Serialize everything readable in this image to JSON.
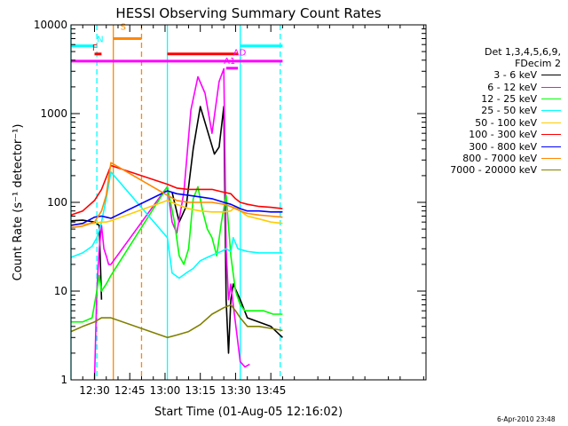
{
  "chart_data": {
    "type": "line",
    "title": "HESSI Observing Summary Count Rates",
    "xlabel": "Start Time (01-Aug-05 12:16:02)",
    "ylabel": "Count Rate (s⁻¹ detector⁻¹)",
    "yscale": "log",
    "ylim": [
      1,
      10000
    ],
    "xlim_minutes": [
      740,
      891
    ],
    "x_ticks": [
      {
        "minutes": 750,
        "label": "12:30"
      },
      {
        "minutes": 765,
        "label": "12:45"
      },
      {
        "minutes": 780,
        "label": "13:00"
      },
      {
        "minutes": 795,
        "label": "13:15"
      },
      {
        "minutes": 810,
        "label": "13:30"
      },
      {
        "minutes": 825,
        "label": "13:45"
      }
    ],
    "y_ticks": [
      {
        "value": 1,
        "label": "1"
      },
      {
        "value": 10,
        "label": "10"
      },
      {
        "value": 100,
        "label": "100"
      },
      {
        "value": 1000,
        "label": "1000"
      },
      {
        "value": 10000,
        "label": "10000"
      }
    ],
    "legend": {
      "header": [
        "Det 1,3,4,5,6,9,",
        "FDecim 2"
      ],
      "placement": "right"
    },
    "grid": false,
    "series": [
      {
        "name": "3 - 6 keV",
        "color": "#000000",
        "x": [
          740,
          745,
          750,
          752,
          753,
          754,
          781,
          783,
          786,
          789,
          792,
          795,
          798,
          801,
          803,
          805,
          806,
          807,
          808,
          809,
          812,
          815,
          825,
          830
        ],
        "y": [
          62,
          63,
          60,
          55,
          8,
          null,
          null,
          130,
          60,
          90,
          400,
          1200,
          650,
          350,
          420,
          1200,
          8,
          2,
          8,
          12,
          8,
          5,
          4,
          3
        ]
      },
      {
        "name": "6 - 12 keV",
        "color": "#ff00ff",
        "x": [
          750,
          751,
          752,
          753,
          754,
          755,
          756,
          757,
          781,
          783,
          785,
          788,
          791,
          794,
          797,
          800,
          803,
          805,
          806,
          807,
          808,
          809,
          812,
          814,
          816
        ],
        "y": [
          1,
          10,
          30,
          55,
          30,
          25,
          20,
          20,
          150,
          60,
          45,
          130,
          1100,
          2600,
          1700,
          600,
          2300,
          3200,
          30,
          8,
          12,
          7,
          1.6,
          1.4,
          1.5
        ]
      },
      {
        "name": "12 - 25 keV",
        "color": "#00ff00",
        "x": [
          740,
          745,
          749,
          751,
          752,
          753,
          755,
          757,
          781,
          784,
          786,
          788,
          790,
          792,
          794,
          796,
          798,
          800,
          802,
          804,
          806,
          808,
          810,
          812,
          814,
          815,
          818,
          822,
          826,
          830
        ],
        "y": [
          4.5,
          4.5,
          5,
          10,
          15,
          10,
          12,
          15,
          150,
          60,
          25,
          20,
          30,
          110,
          150,
          80,
          50,
          40,
          25,
          60,
          120,
          25,
          10,
          7,
          6,
          6,
          6,
          6,
          5.5,
          5.5
        ]
      },
      {
        "name": "25 - 50 keV",
        "color": "#00ffff",
        "x": [
          740,
          745,
          749,
          751,
          753,
          755,
          757,
          781,
          783,
          786,
          789,
          792,
          795,
          798,
          801,
          804,
          806,
          808,
          809,
          811,
          815,
          820,
          825,
          830
        ],
        "y": [
          24,
          27,
          32,
          40,
          60,
          110,
          220,
          40,
          16,
          14,
          16,
          18,
          22,
          24,
          26,
          28,
          30,
          28,
          40,
          30,
          28,
          27,
          27,
          27
        ]
      },
      {
        "name": "50 - 100 keV",
        "color": "#ffcc00",
        "x": [
          740,
          745,
          750,
          753,
          755,
          757,
          781,
          785,
          790,
          795,
          800,
          805,
          808,
          810,
          812,
          815,
          820,
          825,
          830
        ],
        "y": [
          56,
          57,
          58,
          60,
          60,
          62,
          105,
          95,
          85,
          80,
          78,
          78,
          80,
          90,
          80,
          70,
          65,
          60,
          58
        ]
      },
      {
        "name": "100 - 300 keV",
        "color": "#ff0000",
        "x": [
          740,
          745,
          750,
          753,
          755,
          757,
          781,
          785,
          790,
          795,
          800,
          805,
          808,
          810,
          812,
          815,
          820,
          825,
          830
        ],
        "y": [
          72,
          80,
          105,
          140,
          190,
          260,
          160,
          145,
          140,
          140,
          140,
          130,
          125,
          110,
          100,
          95,
          90,
          88,
          85
        ]
      },
      {
        "name": "300 - 800 keV",
        "color": "#0000ff",
        "x": [
          740,
          745,
          750,
          753,
          755,
          757,
          781,
          785,
          790,
          795,
          800,
          805,
          808,
          810,
          812,
          815,
          820,
          825,
          830
        ],
        "y": [
          55,
          58,
          68,
          70,
          68,
          66,
          135,
          125,
          120,
          115,
          110,
          100,
          95,
          90,
          85,
          80,
          80,
          78,
          78
        ]
      },
      {
        "name": "800 - 7000 keV",
        "color": "#ff8800",
        "x": [
          740,
          745,
          750,
          753,
          755,
          757,
          781,
          785,
          790,
          795,
          800,
          805,
          808,
          810,
          812,
          815,
          820,
          825,
          830
        ],
        "y": [
          52,
          54,
          60,
          80,
          120,
          280,
          120,
          105,
          100,
          100,
          100,
          95,
          90,
          85,
          80,
          75,
          72,
          70,
          68
        ]
      },
      {
        "name": "7000 - 20000 keV",
        "color": "#808000",
        "x": [
          740,
          745,
          750,
          753,
          755,
          757,
          781,
          785,
          790,
          795,
          800,
          805,
          808,
          810,
          812,
          815,
          820,
          825,
          830
        ],
        "y": [
          3.5,
          4,
          4.5,
          5,
          5,
          5,
          3,
          3.2,
          3.5,
          4.2,
          5.5,
          6.5,
          7,
          6,
          5,
          4,
          4,
          3.8,
          3.6
        ]
      }
    ],
    "annotations": [
      {
        "text": "N",
        "x": 751,
        "y": 5800,
        "color": "#00ffff"
      },
      {
        "text": "S",
        "x": 761,
        "y": 8000,
        "color": "#ff8800"
      },
      {
        "text": "F",
        "x": 749,
        "y": 4700,
        "color": "#ff0000"
      },
      {
        "text": "A1",
        "x": 805,
        "y": 3300,
        "color": "#ff00ff"
      },
      {
        "text": "AD",
        "x": 809,
        "y": 4100,
        "color": "#ff00ff"
      }
    ],
    "flag_bars": [
      {
        "color": "#00ffff",
        "y": 5800,
        "segments": [
          [
            740,
            750
          ],
          [
            812,
            830
          ]
        ]
      },
      {
        "color": "#ff8800",
        "y": 7000,
        "segments": [
          [
            758,
            770
          ]
        ]
      },
      {
        "color": "#ff0000",
        "y": 4700,
        "segments": [
          [
            750,
            753
          ],
          [
            781,
            811
          ]
        ]
      },
      {
        "color": "#ff00ff",
        "y": 3900,
        "segments": [
          [
            740,
            830
          ]
        ]
      },
      {
        "color": "#ff00ff",
        "y": 3250,
        "segments": [
          [
            806,
            811
          ]
        ]
      }
    ],
    "vertical_lines": [
      {
        "x": 740,
        "color": "#00ffff",
        "style": "solid"
      },
      {
        "x": 751,
        "color": "#00ffff",
        "style": "dashed"
      },
      {
        "x": 758,
        "color": "#ff8800",
        "style": "solid"
      },
      {
        "x": 770,
        "color": "#ff8800",
        "style": "dashed"
      },
      {
        "x": 781,
        "color": "#00ffff",
        "style": "solid"
      },
      {
        "x": 812,
        "color": "#00ffff",
        "style": "solid"
      },
      {
        "x": 829,
        "color": "#00ffff",
        "style": "dashed"
      }
    ]
  },
  "footer": {
    "timestamp": "6-Apr-2010 23:48"
  }
}
